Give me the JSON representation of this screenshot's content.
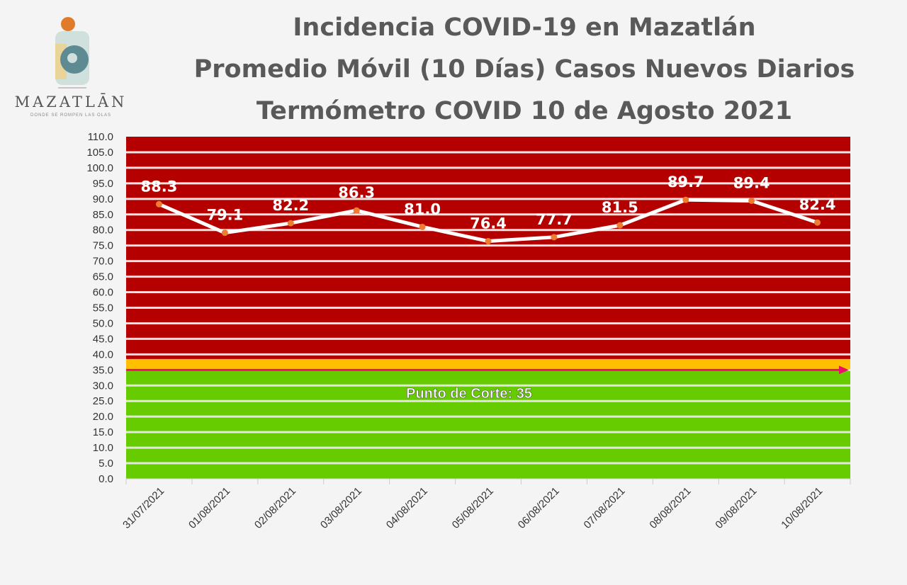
{
  "logo": {
    "name": "MAZATLĀN",
    "tagline": "DONDE SE ROMPEN LAS OLAS"
  },
  "titles": [
    "Incidencia COVID-19 en Mazatlán",
    "Promedio Móvil (10 Días) Casos Nuevos Diarios",
    "Termómetro COVID 10 de Agosto 2021"
  ],
  "chart_data": {
    "type": "line",
    "title": "Incidencia COVID-19 en Mazatlán — Promedio Móvil (10 Días) Casos Nuevos Diarios",
    "categories": [
      "31/07/2021",
      "01/08/2021",
      "02/08/2021",
      "03/08/2021",
      "04/08/2021",
      "05/08/2021",
      "06/08/2021",
      "07/08/2021",
      "08/08/2021",
      "09/08/2021",
      "10/08/2021"
    ],
    "values": [
      88.3,
      79.1,
      82.2,
      86.3,
      81.0,
      76.4,
      77.7,
      81.5,
      89.7,
      89.4,
      82.4
    ],
    "value_labels": [
      "88.3",
      "79.1",
      "82.2",
      "86.3",
      "81.0",
      "76.4",
      "77.7",
      "81.5",
      "89.7",
      "89.4",
      "82.4"
    ],
    "ylim": [
      0,
      110
    ],
    "yticks": [
      "0.0",
      "5.0",
      "10.0",
      "15.0",
      "20.0",
      "25.0",
      "30.0",
      "35.0",
      "40.0",
      "45.0",
      "50.0",
      "55.0",
      "60.0",
      "65.0",
      "70.0",
      "75.0",
      "80.0",
      "85.0",
      "90.0",
      "95.0",
      "100.0",
      "105.0",
      "110.0"
    ],
    "grid": true,
    "bands": [
      {
        "from": 38.5,
        "to": 110,
        "color": "#b50000"
      },
      {
        "from": 35,
        "to": 38.5,
        "color": "#ffc000"
      },
      {
        "from": 0,
        "to": 35,
        "color": "#66cc00"
      }
    ],
    "threshold": {
      "value": 35,
      "label": "Punto de Corte: 35",
      "color": "#e8106a"
    },
    "line_color": "#ffffff",
    "marker_color": "#ed7d31"
  }
}
